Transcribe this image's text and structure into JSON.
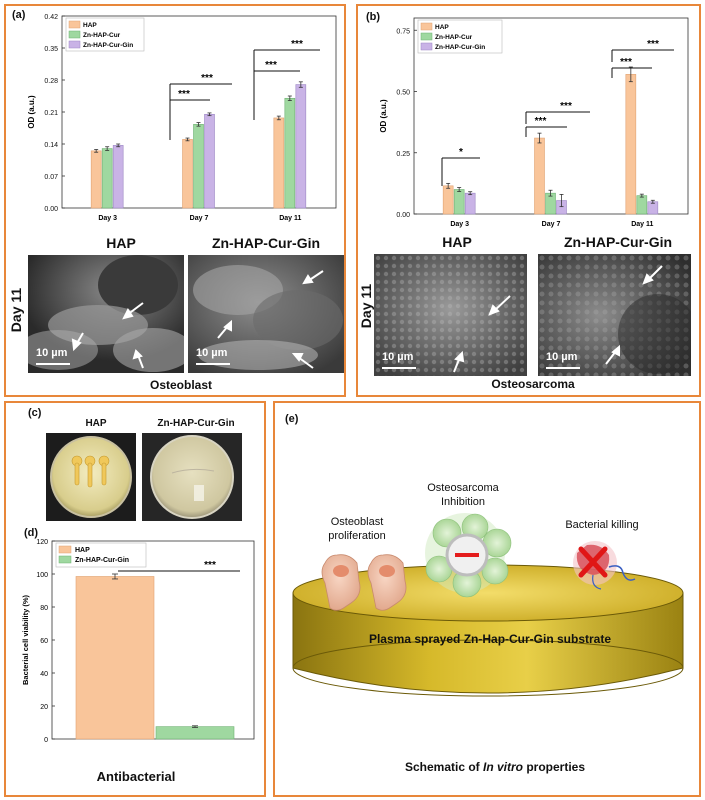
{
  "colors": {
    "border": "#e8873a",
    "hap": "#f9c59a",
    "zncur": "#9fd8a0",
    "zngin": "#c9b3e6",
    "hap_stroke": "#e0a272",
    "zncur_stroke": "#6fb173",
    "zngin_stroke": "#9c86c4"
  },
  "panel_a": {
    "label": "(a)",
    "heading_left": "HAP",
    "heading_right": "Zn-HAP-Cur-Gin",
    "day_label": "Day 11",
    "scale_left": "10 µm",
    "scale_right": "10 µm",
    "caption": "Osteoblast"
  },
  "panel_b": {
    "label": "(b)",
    "heading_left": "HAP",
    "heading_right": "Zn-HAP-Cur-Gin",
    "day_label": "Day 11",
    "scale_left": "10 µm",
    "scale_right": "10 µm",
    "caption": "Osteosarcoma"
  },
  "panel_c": {
    "label": "(c)",
    "plate_left": "HAP",
    "plate_right": "Zn-HAP-Cur-Gin"
  },
  "panel_d": {
    "label": "(d)",
    "caption": "Antibacterial"
  },
  "panel_e": {
    "label": "(e)",
    "osteoblast": "Osteoblast proliferation",
    "osteosarcoma": "Osteosarcoma Inhibition",
    "bacterial": "Bacterial killing",
    "substrate": "Plasma sprayed Zn-Hap-Cur-Gin substrate",
    "caption_pre": "Schematic of ",
    "caption_italic": "In vitro",
    "caption_post": " properties"
  },
  "chart_data": [
    {
      "id": "a",
      "type": "bar",
      "ylabel": "OD (a.u.)",
      "categories": [
        "Day 3",
        "Day 7",
        "Day 11"
      ],
      "ylim": [
        0,
        0.42
      ],
      "yticks": [
        "0.00",
        "0.07",
        "0.14",
        "0.21",
        "0.28",
        "0.35",
        "0.42"
      ],
      "series": [
        {
          "name": "HAP",
          "values": [
            0.125,
            0.15,
            0.197
          ],
          "errors": [
            0.003,
            0.003,
            0.004
          ]
        },
        {
          "name": "Zn-HAP-Cur",
          "values": [
            0.13,
            0.183,
            0.24
          ],
          "errors": [
            0.004,
            0.004,
            0.005
          ]
        },
        {
          "name": "Zn-HAP-Cur-Gin",
          "values": [
            0.137,
            0.205,
            0.27
          ],
          "errors": [
            0.003,
            0.003,
            0.006
          ]
        }
      ],
      "significance": [
        "***",
        "***",
        "***",
        "***"
      ],
      "legend": "top-left"
    },
    {
      "id": "b",
      "type": "bar",
      "ylabel": "OD (a.u.)",
      "categories": [
        "Day 3",
        "Day 7",
        "Day 11"
      ],
      "ylim": [
        0,
        0.8
      ],
      "yticks": [
        "0.00",
        "0.25",
        "0.50",
        "0.75"
      ],
      "series": [
        {
          "name": "HAP",
          "values": [
            0.115,
            0.31,
            0.57
          ],
          "errors": [
            0.01,
            0.02,
            0.03
          ]
        },
        {
          "name": "Zn-HAP-Cur",
          "values": [
            0.1,
            0.085,
            0.075
          ],
          "errors": [
            0.008,
            0.012,
            0.006
          ]
        },
        {
          "name": "Zn-HAP-Cur-Gin",
          "values": [
            0.085,
            0.055,
            0.05
          ],
          "errors": [
            0.006,
            0.025,
            0.006
          ]
        }
      ],
      "significance": [
        "*",
        "***",
        "***",
        "***",
        "***"
      ],
      "legend": "top-left"
    },
    {
      "id": "d",
      "type": "bar",
      "ylabel": "Bacterial cell viability (%)",
      "ylim": [
        0,
        120
      ],
      "yticks": [
        "0",
        "20",
        "40",
        "60",
        "80",
        "100",
        "120"
      ],
      "series": [
        {
          "name": "HAP",
          "values": [
            98.5
          ],
          "errors": [
            1.5
          ]
        },
        {
          "name": "Zn-HAP-Cur-Gin",
          "values": [
            7.5
          ],
          "errors": [
            0.5
          ]
        }
      ],
      "significance": [
        "***"
      ],
      "legend": "top-left"
    }
  ]
}
